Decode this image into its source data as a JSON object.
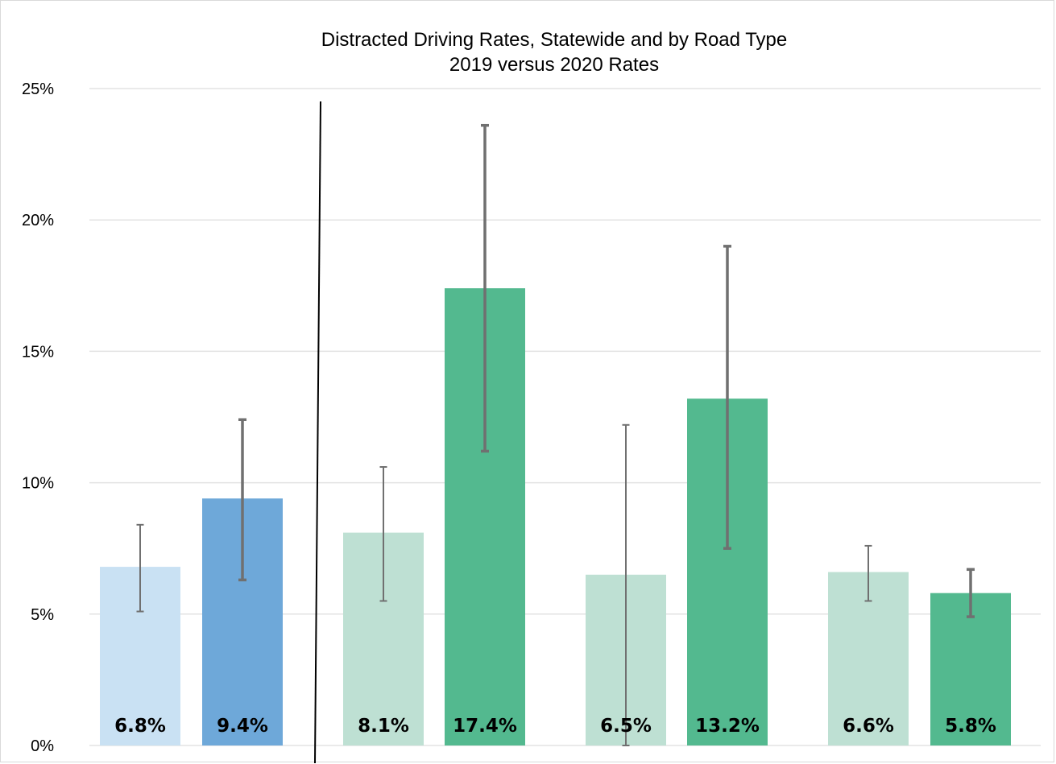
{
  "chart_data": {
    "type": "bar",
    "title": "Distracted Driving Rates, Statewide and by Road Type",
    "subtitle": "2019 versus 2020 Rates",
    "xlabel": "",
    "ylabel": "",
    "ylim": [
      0,
      25
    ],
    "y_ticks": [
      "0%",
      "5%",
      "10%",
      "15%",
      "20%",
      "25%"
    ],
    "grid": true,
    "legend": "none",
    "bars": [
      {
        "value": 6.8,
        "label": "6.8%",
        "err_low": 5.1,
        "err_high": 8.4,
        "color": "#c9e1f3"
      },
      {
        "value": 9.4,
        "label": "9.4%",
        "err_low": 6.3,
        "err_high": 12.4,
        "color": "#6ea8d9"
      },
      {
        "value": 8.1,
        "label": "8.1%",
        "err_low": 5.5,
        "err_high": 10.6,
        "color": "#bee0d3"
      },
      {
        "value": 17.4,
        "label": "17.4%",
        "err_low": 11.2,
        "err_high": 23.6,
        "color": "#53b98f"
      },
      {
        "value": 6.5,
        "label": "6.5%",
        "err_low": 0.0,
        "err_high": 12.2,
        "color": "#bee0d3"
      },
      {
        "value": 13.2,
        "label": "13.2%",
        "err_low": 7.5,
        "err_high": 19.0,
        "color": "#53b98f"
      },
      {
        "value": 6.6,
        "label": "6.6%",
        "err_low": 5.5,
        "err_high": 7.6,
        "color": "#bee0d3"
      },
      {
        "value": 5.8,
        "label": "5.8%",
        "err_low": 4.9,
        "err_high": 6.7,
        "color": "#53b98f"
      }
    ],
    "colors": {
      "gridline": "#e3e3e3",
      "error_bar": "#707070",
      "separator": "#000000"
    }
  }
}
